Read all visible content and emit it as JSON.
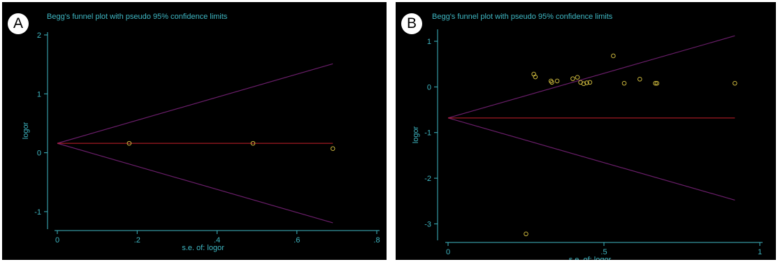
{
  "chart_data": [
    {
      "type": "scatter",
      "panel_label": "A",
      "title": "Begg's funnel plot with pseudo 95% confidence limits",
      "xlabel": "s.e. of: logor",
      "ylabel": "logor",
      "xlim": [
        0,
        0.8
      ],
      "ylim": [
        -1.25,
        2.0
      ],
      "xticks": [
        0,
        0.2,
        0.4,
        0.6,
        0.8
      ],
      "xtick_labels": [
        "0",
        ".2",
        ".4",
        ".6",
        ".8"
      ],
      "yticks": [
        -1,
        0,
        1,
        2
      ],
      "ytick_labels": [
        "-1",
        "0",
        "1",
        "2"
      ],
      "points": [
        {
          "x": 0.18,
          "y": 0.16
        },
        {
          "x": 0.49,
          "y": 0.16
        },
        {
          "x": 0.69,
          "y": 0.07
        }
      ],
      "pooled_estimate": 0.16,
      "funnel_x_max": 0.69,
      "funnel_upper_at_max": 1.51,
      "funnel_lower_at_max": -1.19,
      "colors": {
        "marker": "#c8b43c",
        "reference_line": "#c8202a",
        "funnel_line": "#6a1e6a",
        "axis": "#3fb8c4"
      }
    },
    {
      "type": "scatter",
      "panel_label": "B",
      "title": "Begg's funnel plot with pseudo 95% confidence limits",
      "xlabel": "s.e. of: logor",
      "ylabel": "logor",
      "xlim": [
        0,
        1.0
      ],
      "ylim": [
        -3.3,
        1.2
      ],
      "xticks": [
        0,
        0.5,
        1
      ],
      "xtick_labels": [
        "0",
        ".5",
        "1"
      ],
      "yticks": [
        -3,
        -2,
        -1,
        0,
        1
      ],
      "ytick_labels": [
        "-3",
        "-2",
        "-1",
        "0",
        "1"
      ],
      "points": [
        {
          "x": 0.25,
          "y": -3.22
        },
        {
          "x": 0.275,
          "y": 0.28
        },
        {
          "x": 0.28,
          "y": 0.22
        },
        {
          "x": 0.33,
          "y": 0.13
        },
        {
          "x": 0.333,
          "y": 0.1
        },
        {
          "x": 0.35,
          "y": 0.13
        },
        {
          "x": 0.4,
          "y": 0.18
        },
        {
          "x": 0.415,
          "y": 0.21
        },
        {
          "x": 0.425,
          "y": 0.1
        },
        {
          "x": 0.435,
          "y": 0.07
        },
        {
          "x": 0.445,
          "y": 0.09
        },
        {
          "x": 0.455,
          "y": 0.1
        },
        {
          "x": 0.53,
          "y": 0.68
        },
        {
          "x": 0.565,
          "y": 0.08
        },
        {
          "x": 0.615,
          "y": 0.17
        },
        {
          "x": 0.665,
          "y": 0.08
        },
        {
          "x": 0.67,
          "y": 0.08
        },
        {
          "x": 0.92,
          "y": 0.08
        }
      ],
      "pooled_estimate": -0.68,
      "funnel_x_max": 0.92,
      "funnel_upper_at_max": 1.12,
      "funnel_lower_at_max": -2.48,
      "colors": {
        "marker": "#c8b43c",
        "reference_line": "#c8202a",
        "funnel_line": "#6a1e6a",
        "axis": "#3fb8c4"
      }
    }
  ]
}
